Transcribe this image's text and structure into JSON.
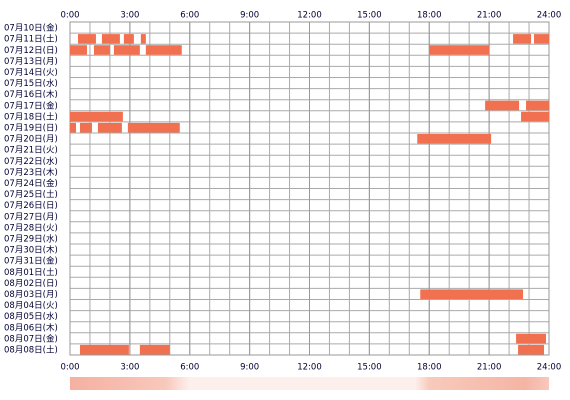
{
  "chart_data": {
    "type": "timeline",
    "categories": [
      "07月10日(金)",
      "07月11日(土)",
      "07月12日(日)",
      "07月13日(月)",
      "07月14日(火)",
      "07月15日(水)",
      "07月16日(木)",
      "07月17日(金)",
      "07月18日(土)",
      "07月19日(日)",
      "07月20日(月)",
      "07月21日(火)",
      "07月22日(水)",
      "07月23日(木)",
      "07月24日(金)",
      "07月25日(土)",
      "07月26日(日)",
      "07月27日(月)",
      "07月28日(火)",
      "07月29日(水)",
      "07月30日(木)",
      "07月31日(金)",
      "08月01日(土)",
      "08月02日(日)",
      "08月03日(月)",
      "08月04日(火)",
      "08月05日(水)",
      "08月06日(木)",
      "08月07日(金)",
      "08月08日(土)"
    ],
    "intervals": [
      [],
      [
        [
          0.4,
          1.3
        ],
        [
          1.6,
          2.5
        ],
        [
          2.7,
          3.2
        ],
        [
          3.55,
          3.8
        ],
        [
          22.2,
          23.1
        ],
        [
          23.25,
          24
        ]
      ],
      [
        [
          0,
          0.85
        ],
        [
          1.2,
          2.0
        ],
        [
          2.2,
          3.5
        ],
        [
          3.8,
          5.6
        ],
        [
          18.0,
          21.0
        ]
      ],
      [],
      [],
      [],
      [],
      [
        [
          20.8,
          22.5
        ],
        [
          22.85,
          24
        ]
      ],
      [
        [
          0,
          2.65
        ],
        [
          22.6,
          24
        ]
      ],
      [
        [
          0,
          0.3
        ],
        [
          0.5,
          1.1
        ],
        [
          1.4,
          2.6
        ],
        [
          2.9,
          5.5
        ]
      ],
      [
        [
          17.4,
          21.1
        ]
      ],
      [],
      [],
      [],
      [],
      [],
      [],
      [],
      [],
      [],
      [],
      [],
      [],
      [],
      [
        [
          17.55,
          22.7
        ]
      ],
      [],
      [],
      [],
      [
        [
          22.35,
          23.85
        ]
      ],
      [
        [
          0.5,
          2.95
        ],
        [
          3.5,
          5.0
        ],
        [
          22.45,
          23.75
        ]
      ]
    ],
    "color": "#f07050",
    "xlim": [
      0,
      24
    ],
    "xticks": [
      {
        "value": 0,
        "label": "0:00"
      },
      {
        "value": 3,
        "label": "3:00"
      },
      {
        "value": 6,
        "label": "6:00"
      },
      {
        "value": 9,
        "label": "9:00"
      },
      {
        "value": 12,
        "label": "12:00"
      },
      {
        "value": 15,
        "label": "15:00"
      },
      {
        "value": 18,
        "label": "18:00"
      },
      {
        "value": 21,
        "label": "21:00"
      },
      {
        "value": 24,
        "label": "24:00"
      }
    ],
    "grid": true
  }
}
